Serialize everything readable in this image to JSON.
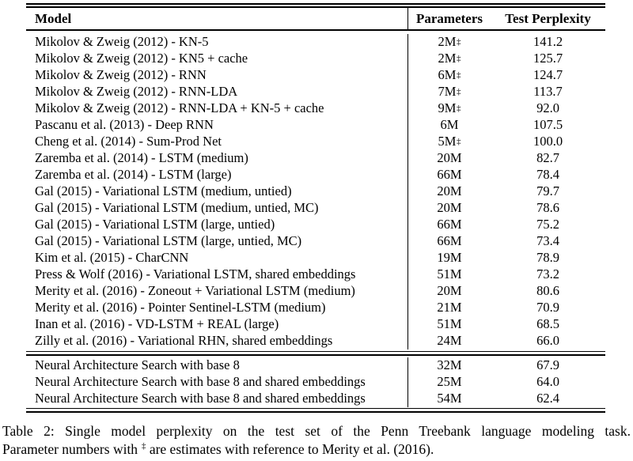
{
  "table": {
    "columns": [
      "Model",
      "Parameters",
      "Test Perplexity"
    ],
    "rows": [
      {
        "model": "Mikolov & Zweig (2012) - KN-5",
        "params": "2M",
        "params_note": "‡",
        "perplexity": "141.2"
      },
      {
        "model": "Mikolov & Zweig (2012) - KN5 + cache",
        "params": "2M",
        "params_note": "‡",
        "perplexity": "125.7"
      },
      {
        "model": "Mikolov & Zweig (2012) - RNN",
        "params": "6M",
        "params_note": "‡",
        "perplexity": "124.7"
      },
      {
        "model": "Mikolov & Zweig (2012) - RNN-LDA",
        "params": "7M",
        "params_note": "‡",
        "perplexity": "113.7"
      },
      {
        "model": "Mikolov & Zweig (2012) - RNN-LDA + KN-5 + cache",
        "params": "9M",
        "params_note": "‡",
        "perplexity": "92.0"
      },
      {
        "model": "Pascanu et al. (2013) - Deep RNN",
        "params": "6M",
        "params_note": "",
        "perplexity": "107.5"
      },
      {
        "model": "Cheng et al. (2014) - Sum-Prod Net",
        "params": "5M",
        "params_note": "‡",
        "perplexity": "100.0"
      },
      {
        "model": "Zaremba et al. (2014) - LSTM (medium)",
        "params": "20M",
        "params_note": "",
        "perplexity": "82.7"
      },
      {
        "model": "Zaremba et al. (2014) - LSTM (large)",
        "params": "66M",
        "params_note": "",
        "perplexity": "78.4"
      },
      {
        "model": "Gal (2015) - Variational LSTM (medium, untied)",
        "params": "20M",
        "params_note": "",
        "perplexity": "79.7"
      },
      {
        "model": "Gal (2015) - Variational LSTM (medium, untied, MC)",
        "params": "20M",
        "params_note": "",
        "perplexity": "78.6"
      },
      {
        "model": "Gal (2015) - Variational LSTM (large, untied)",
        "params": "66M",
        "params_note": "",
        "perplexity": "75.2"
      },
      {
        "model": "Gal (2015) - Variational LSTM (large, untied, MC)",
        "params": "66M",
        "params_note": "",
        "perplexity": "73.4"
      },
      {
        "model": "Kim et al. (2015) - CharCNN",
        "params": "19M",
        "params_note": "",
        "perplexity": "78.9"
      },
      {
        "model": "Press & Wolf (2016) - Variational LSTM, shared embeddings",
        "params": "51M",
        "params_note": "",
        "perplexity": "73.2"
      },
      {
        "model": "Merity et al. (2016) - Zoneout + Variational LSTM (medium)",
        "params": "20M",
        "params_note": "",
        "perplexity": "80.6"
      },
      {
        "model": "Merity et al. (2016) - Pointer Sentinel-LSTM (medium)",
        "params": "21M",
        "params_note": "",
        "perplexity": "70.9"
      },
      {
        "model": "Inan et al. (2016) - VD-LSTM + REAL (large)",
        "params": "51M",
        "params_note": "",
        "perplexity": "68.5"
      },
      {
        "model": "Zilly et al. (2016) - Variational RHN, shared embeddings",
        "params": "24M",
        "params_note": "",
        "perplexity": "66.0"
      }
    ],
    "nas_rows": [
      {
        "model": "Neural Architecture Search with base 8",
        "params": "32M",
        "params_note": "",
        "perplexity": "67.9"
      },
      {
        "model": "Neural Architecture Search with base 8 and shared embeddings",
        "params": "25M",
        "params_note": "",
        "perplexity": "64.0"
      },
      {
        "model": "Neural Architecture Search with base 8 and shared embeddings",
        "params": "54M",
        "params_note": "",
        "perplexity": "62.4"
      }
    ]
  },
  "caption": {
    "line1": "Table 2: Single model perplexity on the test set of the Penn Treebank language modeling task.",
    "line2_before": "Parameter numbers with ",
    "line2_sup": "‡",
    "line2_after": " are estimates with reference to Merity et al. (2016)."
  }
}
